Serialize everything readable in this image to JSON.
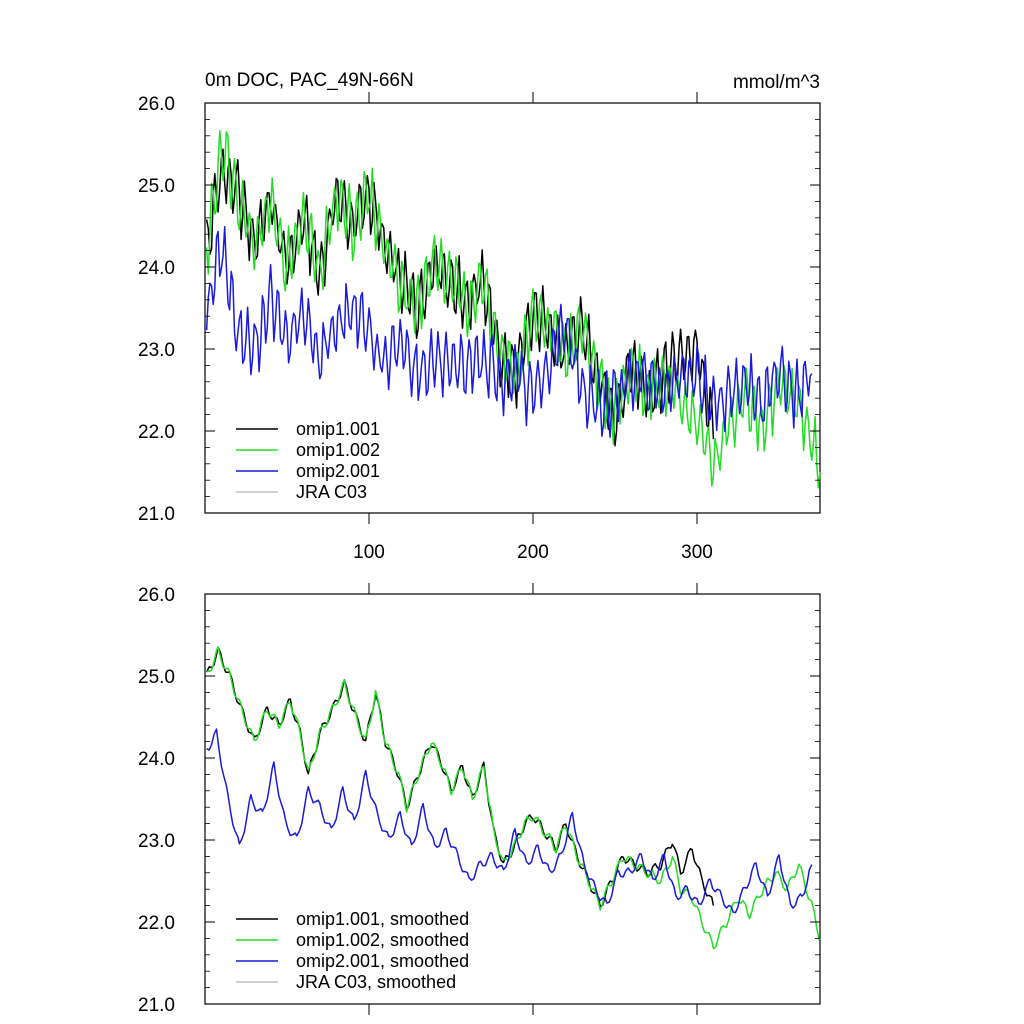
{
  "chart_data": [
    {
      "type": "line",
      "title": "0m DOC, PAC_49N-66N",
      "units": "mmol/m^3",
      "xlim": [
        0,
        375
      ],
      "ylim": [
        21.0,
        26.0
      ],
      "xticks": [
        100,
        200,
        300
      ],
      "xtick_labels": [
        "100",
        "200",
        "300"
      ],
      "yticks": [
        21.0,
        22.0,
        23.0,
        24.0,
        25.0,
        26.0
      ],
      "ytick_labels": [
        "21.0",
        "22.0",
        "23.0",
        "24.0",
        "25.0",
        "26.0"
      ],
      "legend_position": "bottom-left",
      "series": [
        {
          "name": "omip1.001",
          "color": "#000000",
          "x": [
            1,
            10,
            20,
            30,
            40,
            50,
            60,
            70,
            80,
            90,
            100,
            110,
            120,
            130,
            140,
            150,
            160,
            170,
            180,
            190,
            200,
            210,
            220,
            230,
            240,
            250,
            260,
            270,
            280,
            290,
            300,
            310
          ],
          "y": [
            24.2,
            25.2,
            24.9,
            24.3,
            24.8,
            24.0,
            24.6,
            23.9,
            24.9,
            24.5,
            24.9,
            24.2,
            23.8,
            23.5,
            24.1,
            23.8,
            23.6,
            23.8,
            22.9,
            22.7,
            23.4,
            23.3,
            22.9,
            23.3,
            22.6,
            22.2,
            22.8,
            22.5,
            22.7,
            22.9,
            23.0,
            21.9
          ]
        },
        {
          "name": "omip1.002",
          "color": "#22dd22",
          "x": [
            1,
            10,
            20,
            30,
            40,
            50,
            60,
            70,
            80,
            90,
            100,
            110,
            120,
            130,
            140,
            150,
            160,
            170,
            180,
            190,
            200,
            210,
            220,
            230,
            240,
            250,
            260,
            270,
            280,
            290,
            300,
            310,
            320,
            330,
            340,
            350,
            360,
            370,
            375
          ],
          "y": [
            24.2,
            25.5,
            24.9,
            24.3,
            24.8,
            24.0,
            24.6,
            23.9,
            24.9,
            24.5,
            24.9,
            24.2,
            23.8,
            23.5,
            24.1,
            23.8,
            23.6,
            23.8,
            22.9,
            22.7,
            23.4,
            23.3,
            22.9,
            23.3,
            22.6,
            22.2,
            22.8,
            22.5,
            22.6,
            22.4,
            22.1,
            21.6,
            22.1,
            22.4,
            22.0,
            22.6,
            22.4,
            21.9,
            21.5
          ]
        },
        {
          "name": "omip2.001",
          "color": "#1a1adb",
          "x": [
            1,
            10,
            20,
            30,
            40,
            50,
            60,
            70,
            80,
            90,
            100,
            110,
            120,
            130,
            140,
            150,
            160,
            170,
            180,
            190,
            200,
            210,
            220,
            230,
            240,
            250,
            260,
            270,
            280,
            290,
            300,
            310,
            320,
            330,
            340,
            350,
            360,
            370
          ],
          "y": [
            23.4,
            24.3,
            23.2,
            23.0,
            23.6,
            23.1,
            23.4,
            22.9,
            23.3,
            23.5,
            23.2,
            22.8,
            23.1,
            22.7,
            22.9,
            22.7,
            22.8,
            22.9,
            22.6,
            22.7,
            22.4,
            22.8,
            23.3,
            22.5,
            22.3,
            22.4,
            22.7,
            22.6,
            22.5,
            22.6,
            22.7,
            22.3,
            22.5,
            22.6,
            22.3,
            22.8,
            22.4,
            22.7
          ]
        },
        {
          "name": "JRA C03",
          "color": "#c0c0c0",
          "x": [],
          "y": []
        }
      ]
    },
    {
      "type": "line",
      "title": "",
      "xlim": [
        0,
        375
      ],
      "ylim": [
        21.0,
        26.0
      ],
      "xticks": [
        100,
        200,
        300
      ],
      "xtick_labels": [],
      "yticks": [
        21.0,
        22.0,
        23.0,
        24.0,
        25.0,
        26.0
      ],
      "ytick_labels": [
        "21.0",
        "22.0",
        "23.0",
        "24.0",
        "25.0",
        "26.0"
      ],
      "legend_position": "bottom-left",
      "series": [
        {
          "name": "omip1.001, smoothed",
          "color": "#000000",
          "x": [
            1,
            8,
            15,
            22,
            30,
            38,
            45,
            52,
            58,
            63,
            70,
            78,
            85,
            92,
            98,
            104,
            110,
            118,
            123,
            130,
            138,
            145,
            150,
            157,
            163,
            170,
            176,
            182,
            188,
            195,
            200,
            207,
            214,
            220,
            227,
            234,
            241,
            248,
            255,
            262,
            270,
            278,
            285,
            290,
            297,
            303,
            310
          ],
          "y": [
            25.0,
            25.3,
            25.0,
            24.6,
            24.2,
            24.6,
            24.4,
            24.7,
            24.3,
            23.8,
            24.3,
            24.6,
            24.9,
            24.5,
            24.2,
            24.8,
            24.2,
            23.8,
            23.4,
            23.8,
            24.2,
            23.9,
            23.6,
            23.9,
            23.5,
            23.9,
            23.1,
            22.7,
            22.9,
            23.2,
            23.3,
            23.1,
            22.9,
            23.2,
            22.8,
            22.5,
            22.2,
            22.5,
            22.8,
            22.7,
            22.6,
            22.7,
            23.0,
            22.6,
            22.9,
            22.5,
            22.2
          ]
        },
        {
          "name": "omip1.002, smoothed",
          "color": "#22dd22",
          "x": [
            1,
            8,
            15,
            22,
            30,
            38,
            45,
            52,
            58,
            63,
            70,
            78,
            85,
            92,
            98,
            104,
            110,
            118,
            123,
            130,
            138,
            145,
            150,
            157,
            163,
            170,
            176,
            182,
            188,
            195,
            200,
            207,
            214,
            220,
            227,
            234,
            241,
            248,
            255,
            262,
            270,
            278,
            285,
            290,
            297,
            303,
            310,
            318,
            325,
            332,
            340,
            348,
            355,
            362,
            370,
            375
          ],
          "y": [
            25.0,
            25.3,
            25.0,
            24.6,
            24.2,
            24.6,
            24.4,
            24.7,
            24.3,
            23.8,
            24.3,
            24.6,
            24.9,
            24.5,
            24.2,
            24.8,
            24.2,
            23.8,
            23.4,
            23.8,
            24.2,
            23.9,
            23.6,
            23.9,
            23.5,
            23.9,
            23.1,
            22.7,
            22.9,
            23.2,
            23.3,
            23.1,
            22.9,
            23.2,
            22.8,
            22.5,
            22.2,
            22.5,
            22.8,
            22.7,
            22.6,
            22.5,
            22.8,
            22.4,
            22.3,
            22.0,
            21.7,
            22.0,
            22.3,
            22.1,
            22.4,
            22.6,
            22.4,
            22.7,
            22.2,
            21.8
          ]
        },
        {
          "name": "omip2.001, smoothed",
          "color": "#1a1adb",
          "x": [
            1,
            7,
            14,
            21,
            28,
            35,
            42,
            49,
            56,
            63,
            70,
            77,
            84,
            91,
            98,
            105,
            112,
            119,
            126,
            133,
            140,
            147,
            154,
            161,
            168,
            175,
            182,
            189,
            196,
            203,
            210,
            217,
            224,
            231,
            238,
            245,
            252,
            259,
            266,
            273,
            280,
            287,
            294,
            301,
            308,
            315,
            322,
            329,
            336,
            343,
            350,
            357,
            364,
            370
          ],
          "y": [
            24.1,
            24.3,
            23.5,
            22.9,
            23.5,
            23.3,
            23.9,
            23.2,
            23.0,
            23.6,
            23.4,
            23.1,
            23.6,
            23.2,
            23.8,
            23.3,
            23.0,
            23.3,
            22.9,
            23.4,
            22.9,
            23.1,
            22.8,
            22.5,
            22.7,
            22.8,
            22.6,
            23.1,
            22.7,
            22.9,
            22.6,
            22.8,
            23.3,
            22.7,
            22.4,
            22.2,
            22.6,
            22.6,
            22.8,
            22.5,
            22.8,
            22.3,
            22.4,
            22.2,
            22.5,
            22.3,
            22.1,
            22.4,
            22.7,
            22.3,
            22.8,
            22.2,
            22.3,
            22.7
          ]
        },
        {
          "name": "JRA C03, smoothed",
          "color": "#c0c0c0",
          "x": [],
          "y": []
        }
      ]
    }
  ]
}
